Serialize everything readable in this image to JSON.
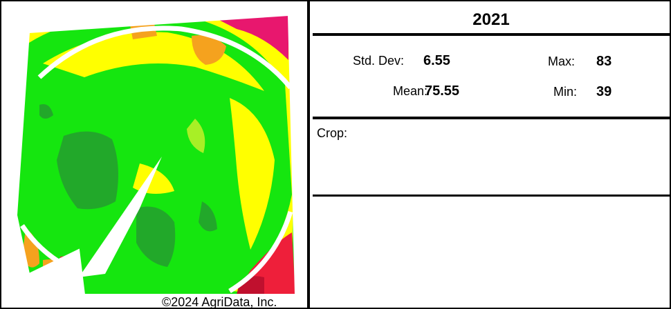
{
  "map": {
    "copyright": "©2024 AgriData, Inc.",
    "colors": {
      "dark_green": "#22a82a",
      "green": "#15e60f",
      "yellow_green": "#a8ef26",
      "yellow": "#ffff00",
      "orange": "#f5a21e",
      "red": "#ee1f3a",
      "magenta": "#e8176e",
      "dark_red": "#c0102e"
    }
  },
  "stats": {
    "year": "2021",
    "std_dev_label": "Std. Dev:",
    "std_dev_value": "6.55",
    "mean_label": "Mean:",
    "mean_value": "75.55",
    "max_label": "Max:",
    "max_value": "83",
    "min_label": "Min:",
    "min_value": "39"
  },
  "crop": {
    "label": "Crop:",
    "value": ""
  }
}
